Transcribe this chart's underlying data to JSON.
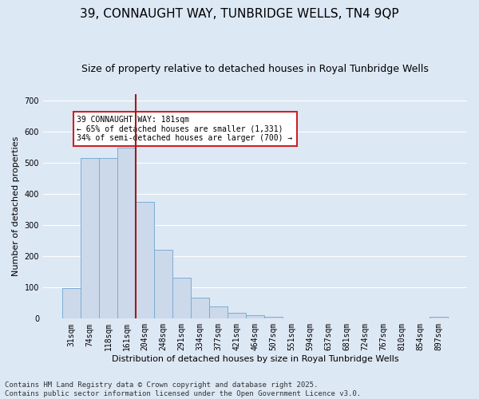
{
  "title": "39, CONNAUGHT WAY, TUNBRIDGE WELLS, TN4 9QP",
  "subtitle": "Size of property relative to detached houses in Royal Tunbridge Wells",
  "xlabel": "Distribution of detached houses by size in Royal Tunbridge Wells",
  "ylabel": "Number of detached properties",
  "footer": "Contains HM Land Registry data © Crown copyright and database right 2025.\nContains public sector information licensed under the Open Government Licence v3.0.",
  "categories": [
    "31sqm",
    "74sqm",
    "118sqm",
    "161sqm",
    "204sqm",
    "248sqm",
    "291sqm",
    "334sqm",
    "377sqm",
    "421sqm",
    "464sqm",
    "507sqm",
    "551sqm",
    "594sqm",
    "637sqm",
    "681sqm",
    "724sqm",
    "767sqm",
    "810sqm",
    "854sqm",
    "897sqm"
  ],
  "values": [
    97,
    514,
    515,
    548,
    375,
    222,
    130,
    68,
    40,
    18,
    10,
    5,
    1,
    0,
    0,
    0,
    0,
    0,
    0,
    0,
    6
  ],
  "bar_color": "#ccd9ea",
  "bar_edge_color": "#7aadd4",
  "vline_color": "#9b1c1c",
  "annotation_text": "39 CONNAUGHT WAY: 181sqm\n← 65% of detached houses are smaller (1,331)\n34% of semi-detached houses are larger (700) →",
  "annotation_box_color": "#ffffff",
  "annotation_box_edge": "#cc2222",
  "ylim": [
    0,
    720
  ],
  "yticks": [
    0,
    100,
    200,
    300,
    400,
    500,
    600,
    700
  ],
  "background_color": "#dde8f5",
  "grid_color": "#ffffff",
  "title_fontsize": 11,
  "subtitle_fontsize": 9,
  "axis_label_fontsize": 8,
  "tick_fontsize": 7,
  "footer_fontsize": 6.5
}
